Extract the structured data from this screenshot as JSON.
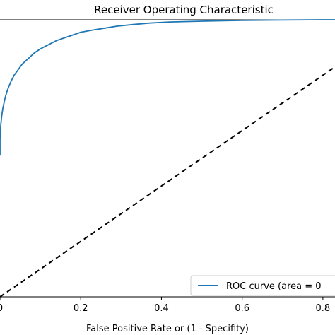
{
  "chart_data": {
    "type": "line",
    "title": "Receiver Operating Characteristic",
    "xlabel": "False Positive Rate or (1 - Specifity)",
    "ylabel": "",
    "xlim": [
      0.0,
      0.9
    ],
    "ylim": [
      0.0,
      1.0
    ],
    "x_ticks": [
      0.0,
      0.2,
      0.4,
      0.6,
      0.8
    ],
    "x_tick_labels": [
      "0",
      "0.2",
      "0.4",
      "0.6",
      "0.8"
    ],
    "grid": false,
    "legend_position": "bottom-right",
    "series": [
      {
        "name": "ROC curve (area = 0",
        "style": "solid",
        "color": "#1f77b4",
        "x": [
          0.0,
          0.0,
          0.002,
          0.004,
          0.007,
          0.01,
          0.013,
          0.017,
          0.022,
          0.028,
          0.035,
          0.045,
          0.055,
          0.07,
          0.085,
          0.1,
          0.12,
          0.14,
          0.16,
          0.18,
          0.2,
          0.23,
          0.26,
          0.29,
          0.33,
          0.37,
          0.42,
          0.5,
          0.6,
          0.7,
          0.8,
          0.9
        ],
        "y": [
          0.51,
          0.57,
          0.62,
          0.65,
          0.68,
          0.7,
          0.72,
          0.74,
          0.76,
          0.78,
          0.8,
          0.82,
          0.84,
          0.86,
          0.88,
          0.895,
          0.91,
          0.925,
          0.935,
          0.945,
          0.955,
          0.963,
          0.97,
          0.977,
          0.983,
          0.988,
          0.992,
          0.995,
          0.998,
          0.999,
          1.0,
          1.0
        ]
      },
      {
        "name": "",
        "style": "dashed",
        "color": "#000000",
        "x": [
          0.0,
          0.9
        ],
        "y": [
          0.0,
          0.9
        ]
      }
    ]
  }
}
